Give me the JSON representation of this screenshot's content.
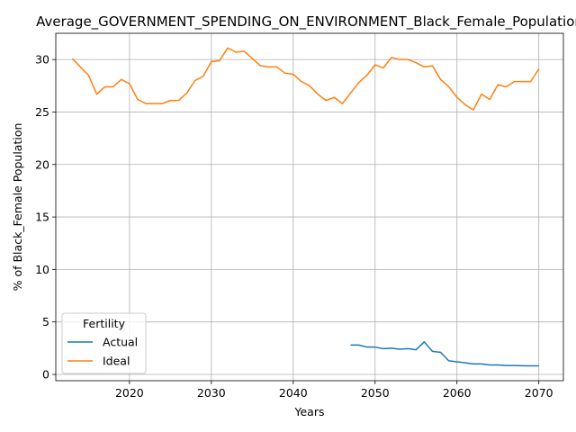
{
  "chart_data": {
    "type": "line",
    "title": "Average_GOVERNMENT_SPENDING_ON_ENVIRONMENT_Black_Female_Population",
    "xlabel": "Years",
    "ylabel": "% of Black_Female Population",
    "xlim": [
      2011,
      2073
    ],
    "ylim": [
      -0.6,
      32.5
    ],
    "xticks": [
      2020,
      2030,
      2040,
      2050,
      2060,
      2070
    ],
    "yticks": [
      0,
      5,
      10,
      15,
      20,
      25,
      30
    ],
    "grid": true,
    "legend": {
      "title": "Fertility",
      "placement": "lower-left"
    },
    "series": [
      {
        "name": "Actual",
        "color": "#1f77b4",
        "x": [
          2047,
          2048,
          2049,
          2050,
          2051,
          2052,
          2053,
          2054,
          2055,
          2056,
          2057,
          2058,
          2059,
          2060,
          2061,
          2062,
          2063,
          2064,
          2065,
          2066,
          2067,
          2068,
          2069,
          2070
        ],
        "y": [
          2.8,
          2.8,
          2.6,
          2.6,
          2.45,
          2.5,
          2.4,
          2.45,
          2.35,
          3.1,
          2.2,
          2.1,
          1.3,
          1.2,
          1.1,
          1.0,
          1.0,
          0.9,
          0.9,
          0.85,
          0.85,
          0.83,
          0.82,
          0.82
        ]
      },
      {
        "name": "Ideal",
        "color": "#ff7f0e",
        "x": [
          2013,
          2014,
          2015,
          2016,
          2017,
          2018,
          2019,
          2020,
          2021,
          2022,
          2023,
          2024,
          2025,
          2026,
          2027,
          2028,
          2029,
          2030,
          2031,
          2032,
          2033,
          2034,
          2035,
          2036,
          2037,
          2038,
          2039,
          2040,
          2041,
          2042,
          2043,
          2044,
          2045,
          2046,
          2047,
          2048,
          2049,
          2050,
          2051,
          2052,
          2053,
          2054,
          2055,
          2056,
          2057,
          2058,
          2059,
          2060,
          2061,
          2062,
          2063,
          2064,
          2065,
          2066,
          2067,
          2068,
          2069,
          2070
        ],
        "y": [
          30.1,
          29.3,
          28.5,
          26.7,
          27.4,
          27.4,
          28.1,
          27.7,
          26.2,
          25.8,
          25.8,
          25.8,
          26.1,
          26.1,
          26.8,
          28.0,
          28.4,
          29.8,
          29.9,
          31.1,
          30.7,
          30.8,
          30.1,
          29.4,
          29.3,
          29.3,
          28.7,
          28.6,
          27.9,
          27.5,
          26.7,
          26.1,
          26.4,
          25.8,
          26.8,
          27.8,
          28.5,
          29.5,
          29.2,
          30.2,
          30.0,
          30.0,
          29.7,
          29.3,
          29.4,
          28.1,
          27.4,
          26.4,
          25.7,
          25.2,
          26.7,
          26.2,
          27.6,
          27.4,
          27.9,
          27.9,
          27.9,
          29.1
        ]
      }
    ]
  }
}
